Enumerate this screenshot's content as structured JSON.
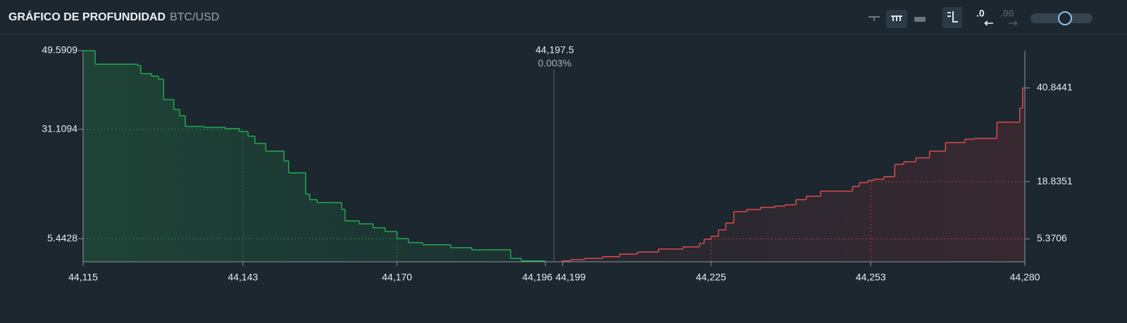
{
  "header": {
    "title": "GRÁFICO DE PROFUNDIDAD",
    "pair": "BTC/USD"
  },
  "toolbar": {
    "decimals_less": ".0",
    "decimals_more": ".00"
  },
  "chart_data": {
    "type": "depth",
    "xlim": [
      44115,
      44280
    ],
    "xticks": [
      {
        "value": 44115,
        "label": "44,115"
      },
      {
        "value": 44143,
        "label": "44,143"
      },
      {
        "value": 44170,
        "label": "44,170"
      },
      {
        "value": 44196,
        "label": "44,196"
      },
      {
        "value": 44199,
        "label": "44,199"
      },
      {
        "value": 44225,
        "label": "44,225"
      },
      {
        "value": 44253,
        "label": "44,253"
      },
      {
        "value": 44280,
        "label": "44,280"
      }
    ],
    "ylim": [
      0,
      49.5909
    ],
    "yticks": [
      5.4428,
      31.1094,
      49.5909
    ],
    "y2lim": [
      0,
      49.5909
    ],
    "y2ticks": [
      5.3706,
      18.8351,
      40.8441
    ],
    "mid": {
      "value": 44197.5,
      "label": "44,197.5"
    },
    "spread": "0.003%",
    "series": [
      {
        "color": "#22a94f",
        "step": "before",
        "x": [
          44117.1,
          44124.5,
          44125.1,
          44127.0,
          44128.2,
          44129.1,
          44130.9,
          44131.9,
          44132.9,
          44136.2,
          44139.9,
          44142.4,
          44143.9,
          44145.1,
          44147.0,
          44150.2,
          44151.0,
          44154.0,
          44154.7,
          44156.0,
          44160.3,
          44160.9,
          44163.4,
          44165.8,
          44167.9,
          44170.0,
          44172.0,
          44174.5,
          44179.4,
          44183.1,
          44189.9,
          44191.8,
          44196.0
        ],
        "values": [
          49.5909,
          46.4,
          46.1,
          44.2,
          43.6,
          42.9,
          38.1,
          35.8,
          34.3,
          31.8,
          31.6,
          31.3,
          30.6,
          29.5,
          27.8,
          26.0,
          23.7,
          20.9,
          15.9,
          14.6,
          13.9,
          12.3,
          9.6,
          8.9,
          8.0,
          7.1,
          5.44,
          4.5,
          4.0,
          3.3,
          2.8,
          0.8,
          0.2
        ]
      },
      {
        "color": "#dc4a4e",
        "step": "after",
        "axis": "y2",
        "x": [
          44199.0,
          44200.4,
          44202.9,
          44206.0,
          44209.0,
          44212.1,
          44215.8,
          44220.1,
          44223.0,
          44223.8,
          44225.0,
          44226.3,
          44227.6,
          44229.0,
          44231.3,
          44233.7,
          44236.2,
          44238.0,
          44239.9,
          44241.7,
          44244.2,
          44249.8,
          44251.0,
          44252.5,
          44253.5,
          44255.3,
          44257.2,
          44258.8,
          44260.9,
          44263.3,
          44266.1,
          44269.5,
          44271.1,
          44275.1,
          44279.1,
          44279.6
        ],
        "values": [
          0.2,
          0.5,
          0.8,
          1.2,
          1.8,
          2.3,
          3.0,
          3.5,
          4.3,
          5.3,
          6.0,
          7.5,
          9.1,
          11.8,
          12.3,
          12.8,
          13.1,
          13.4,
          14.6,
          15.4,
          16.6,
          17.7,
          18.6,
          19.1,
          19.4,
          20.0,
          22.9,
          23.5,
          24.4,
          26.0,
          28.0,
          28.8,
          29.0,
          32.8,
          36.1,
          40.8441
        ]
      }
    ]
  }
}
